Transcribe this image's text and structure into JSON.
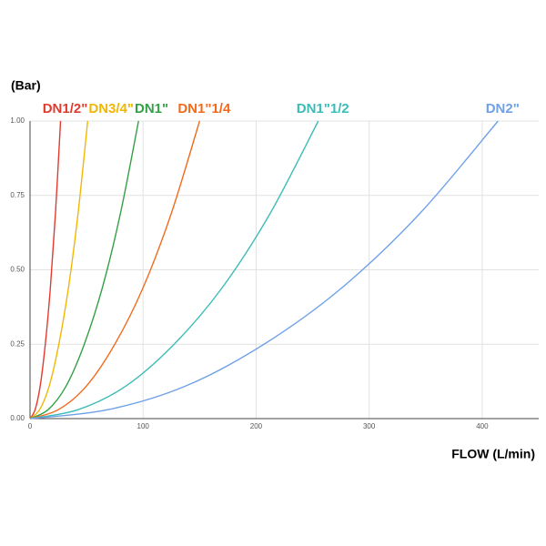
{
  "chart_data": {
    "type": "line",
    "y_label": "(Bar)",
    "x_label": "FLOW (L/min)",
    "xlim": [
      0,
      450
    ],
    "xticks": [
      0,
      100,
      200,
      300,
      400
    ],
    "ylim": [
      0,
      1
    ],
    "yticks": [
      {
        "value": 0,
        "label": "0.00"
      },
      {
        "value": 0.25,
        "label": "0.25"
      },
      {
        "value": 0.5,
        "label": "0.50"
      },
      {
        "value": 0.75,
        "label": "0.75"
      },
      {
        "value": 1,
        "label": "1.00"
      }
    ],
    "grid": true,
    "series": [
      {
        "name": "DN1/2\"",
        "color": "#e03b2f",
        "x": [
          0,
          4.5,
          9,
          13.5,
          18,
          22.5,
          27
        ],
        "values": [
          0,
          0.03,
          0.11,
          0.25,
          0.44,
          0.69,
          1
        ]
      },
      {
        "name": "DN3/4\"",
        "color": "#f2b705",
        "x": [
          0,
          8.5,
          17,
          25.5,
          34,
          42.5,
          51
        ],
        "values": [
          0,
          0.03,
          0.11,
          0.25,
          0.44,
          0.69,
          1
        ]
      },
      {
        "name": "DN1\"",
        "color": "#34a046",
        "x": [
          0,
          16,
          32,
          48,
          64,
          80,
          96
        ],
        "values": [
          0,
          0.03,
          0.11,
          0.25,
          0.44,
          0.69,
          1
        ]
      },
      {
        "name": "DN1\"1/4",
        "color": "#f26b1d",
        "x": [
          0,
          25,
          50,
          75,
          100,
          125,
          150
        ],
        "values": [
          0,
          0.03,
          0.11,
          0.25,
          0.44,
          0.69,
          1
        ]
      },
      {
        "name": "DN1\"1/2",
        "color": "#3cbcb8",
        "x": [
          0,
          42.5,
          85,
          127.5,
          170,
          212.5,
          255
        ],
        "values": [
          0,
          0.03,
          0.11,
          0.25,
          0.44,
          0.69,
          1
        ]
      },
      {
        "name": "DN2\"",
        "color": "#6fa1e8",
        "x": [
          0,
          69,
          138,
          207,
          276,
          345,
          414
        ],
        "values": [
          0,
          0.03,
          0.11,
          0.25,
          0.44,
          0.69,
          1
        ]
      }
    ]
  }
}
